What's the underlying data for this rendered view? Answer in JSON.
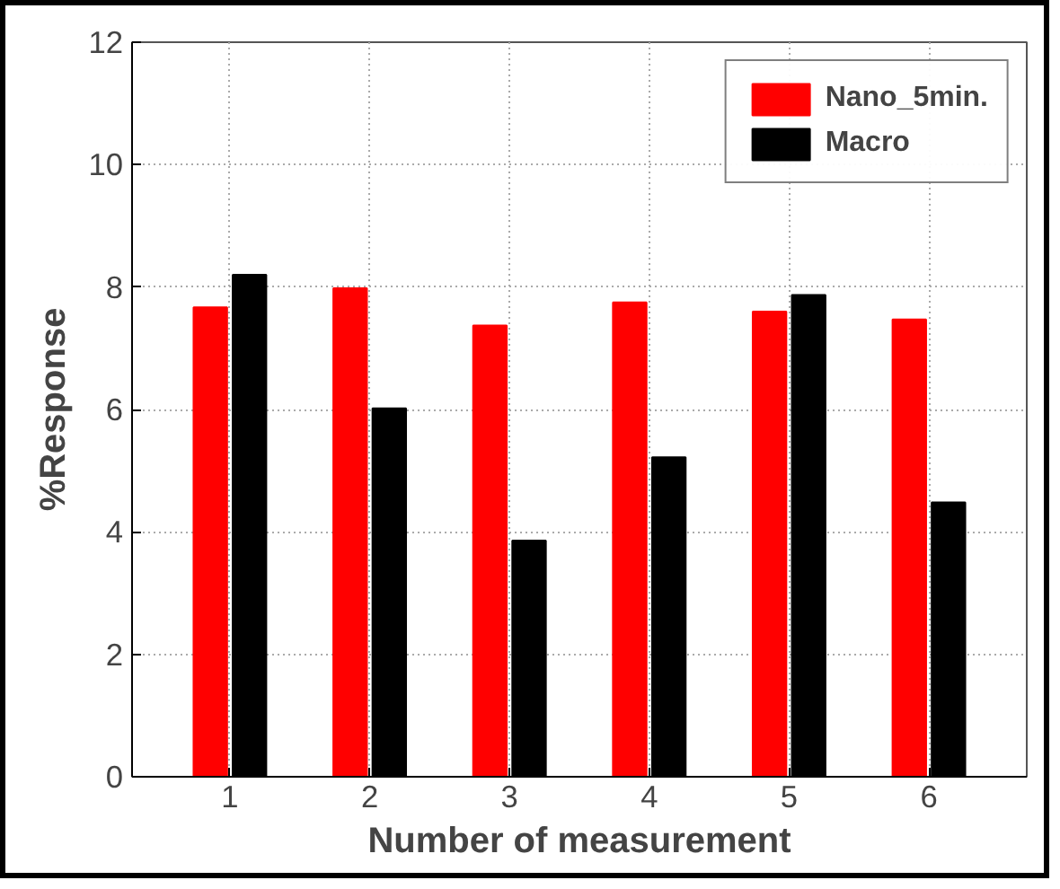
{
  "chart_data": {
    "type": "bar",
    "xlabel": "Number of measurement",
    "ylabel": "%Response",
    "categories": [
      "1",
      "2",
      "3",
      "4",
      "5",
      "6"
    ],
    "series": [
      {
        "name": "Nano_5min.",
        "color": "#ff0000",
        "values": [
          7.67,
          7.98,
          7.37,
          7.75,
          7.6,
          7.47
        ]
      },
      {
        "name": "Macro",
        "color": "#000000",
        "values": [
          8.2,
          6.02,
          3.86,
          5.22,
          7.87,
          4.48
        ]
      }
    ],
    "ylim": [
      0,
      12
    ],
    "yticks": [
      0,
      2,
      4,
      6,
      8,
      10,
      12
    ],
    "grid": true,
    "legend": "top right"
  }
}
